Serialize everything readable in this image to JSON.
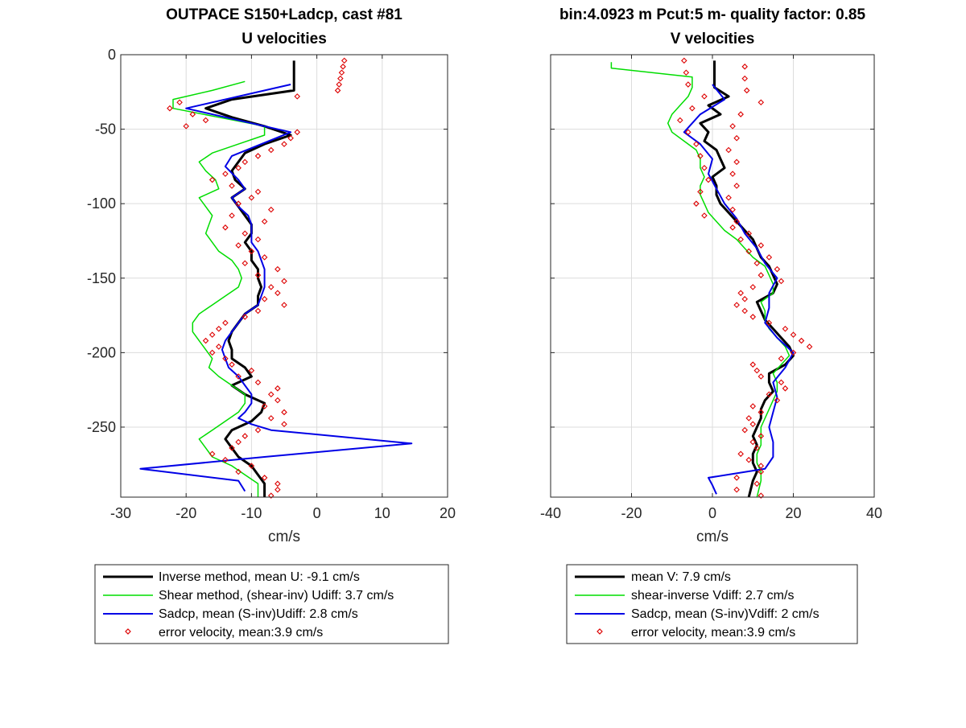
{
  "chart_data": [
    {
      "type": "line",
      "title_line1": "OUTPACE S150+Ladcp, cast #81",
      "title_line2": "U velocities",
      "xlabel": "cm/s",
      "ylabel": "",
      "xlim": [
        -30,
        20
      ],
      "ylim": [
        -297,
        0
      ],
      "xticks": [
        -30,
        -20,
        -10,
        0,
        10,
        20
      ],
      "yticks": [
        0,
        -50,
        -100,
        -150,
        -200,
        -250
      ],
      "grid": true,
      "legend_position": "below",
      "series": [
        {
          "name": "Inverse method, mean U:  -9.1 cm/s",
          "color": "#000000",
          "depth": [
            -4,
            -24,
            -30,
            -36,
            -42,
            -48,
            -54,
            -60,
            -66,
            -72,
            -78,
            -84,
            -90,
            -96,
            -102,
            -108,
            -114,
            -120,
            -126,
            -132,
            -138,
            -144,
            -150,
            -156,
            -162,
            -168,
            -174,
            -180,
            -186,
            -192,
            -198,
            -204,
            -210,
            -216,
            -222,
            -228,
            -234,
            -240,
            -246,
            -252,
            -258,
            -264,
            -270,
            -276,
            -282,
            -288,
            -297
          ],
          "values": [
            -3.5,
            -3.5,
            -13,
            -17,
            -13,
            -8,
            -4,
            -8,
            -11,
            -12,
            -13,
            -12.5,
            -11,
            -13,
            -12,
            -11,
            -10,
            -10,
            -11,
            -10,
            -10,
            -9,
            -9,
            -8.5,
            -9,
            -9,
            -11,
            -12,
            -13,
            -13.5,
            -13,
            -13,
            -11,
            -10,
            -13,
            -11,
            -8,
            -8.5,
            -10,
            -13,
            -14,
            -13,
            -12,
            -10,
            -9,
            -8,
            -8
          ]
        },
        {
          "name": "Shear method, (shear-inv)  Udiff:  3.7 cm/s",
          "color": "#00dd00",
          "depth": [
            -18,
            -24,
            -30,
            -36,
            -42,
            -48,
            -54,
            -60,
            -66,
            -72,
            -78,
            -84,
            -90,
            -96,
            -102,
            -108,
            -114,
            -120,
            -126,
            -132,
            -138,
            -144,
            -150,
            -156,
            -162,
            -168,
            -174,
            -180,
            -186,
            -192,
            -198,
            -204,
            -210,
            -216,
            -222,
            -228,
            -234,
            -240,
            -246,
            -252,
            -258,
            -264,
            -270,
            -276,
            -282,
            -288,
            -297
          ],
          "values": [
            -11,
            -16,
            -22,
            -22,
            -15,
            -8,
            -8,
            -12,
            -16,
            -18,
            -17,
            -15.5,
            -15,
            -18,
            -17,
            -16,
            -16.5,
            -17,
            -16,
            -15,
            -13,
            -12,
            -11.5,
            -12,
            -14,
            -16,
            -18,
            -19,
            -19,
            -18,
            -17,
            -16,
            -16.5,
            -15,
            -13,
            -11,
            -11,
            -12,
            -14,
            -16,
            -18,
            -17,
            -16,
            -13,
            -11,
            -9,
            -9
          ]
        },
        {
          "name": "Sadcp, mean (S-inv)Udiff: 2.8 cm/s",
          "color": "#0000e6",
          "depth": [
            -20,
            -36,
            -52,
            -68,
            -75,
            -84,
            -90,
            -96,
            -102,
            -108,
            -114,
            -120,
            -126,
            -132,
            -138,
            -144,
            -150,
            -156,
            -162,
            -168,
            -174,
            -180,
            -186,
            -192,
            -198,
            -204,
            -210,
            -216,
            -222,
            -228,
            -234,
            -240,
            -244,
            -248,
            -252,
            -261,
            -270,
            -278,
            -286,
            -293
          ],
          "values": [
            -4,
            -20,
            -4,
            -13,
            -14,
            -12,
            -11,
            -13,
            -12,
            -10.5,
            -10,
            -10,
            -10,
            -9,
            -8.5,
            -8,
            -8,
            -8,
            -8.5,
            -9,
            -11,
            -12,
            -13,
            -14,
            -14.5,
            -14,
            -13.5,
            -12,
            -11,
            -10,
            -10,
            -11,
            -12,
            -10,
            -7,
            14.5,
            -8,
            -27,
            -12,
            -11
          ]
        },
        {
          "name": "error velocity, mean:3.9 cm/s",
          "color": "#dd0000",
          "marker": "diamond",
          "depth": [
            -4,
            -8,
            -12,
            -16,
            -20,
            -24,
            -28,
            -32,
            -36,
            -40,
            -44,
            -48,
            -52,
            -56,
            -60,
            -64,
            -68,
            -72,
            -76,
            -80,
            -84,
            -88,
            -92,
            -96,
            -100,
            -104,
            -108,
            -112,
            -116,
            -120,
            -124,
            -128,
            -132,
            -136,
            -140,
            -144,
            -148,
            -152,
            -156,
            -160,
            -164,
            -168,
            -172,
            -176,
            -180,
            -184,
            -188,
            -192,
            -196,
            -200,
            -204,
            -208,
            -212,
            -216,
            -220,
            -224,
            -228,
            -232,
            -236,
            -240,
            -244,
            -248,
            -252,
            -256,
            -260,
            -264,
            -268,
            -272,
            -276,
            -280,
            -284,
            -288,
            -292,
            -296
          ],
          "values": [
            4.2,
            4,
            3.8,
            3.6,
            3.4,
            3.2,
            -3,
            -21,
            -22.5,
            -19,
            -17,
            -20,
            -3,
            -4,
            -5,
            -7,
            -9,
            -11,
            -12,
            -14,
            -16,
            -13,
            -9,
            -10,
            -12,
            -7,
            -13,
            -8,
            -14,
            -11,
            -9,
            -12,
            -10,
            -8,
            -11,
            -6,
            -9,
            -5,
            -7,
            -6,
            -8,
            -5,
            -9,
            -11,
            -14,
            -15,
            -16,
            -17,
            -15,
            -16,
            -14,
            -13,
            -10,
            -12,
            -9,
            -6,
            -7,
            -6,
            -8,
            -5,
            -7,
            -5,
            -9,
            -11,
            -12,
            -13,
            -16,
            -14,
            -10,
            -12,
            -8,
            -6,
            -6,
            -7
          ]
        }
      ]
    },
    {
      "type": "line",
      "title_line1": "bin:4.0923 m  Pcut:5 m- quality factor:  0.85",
      "title_line2": "V velocities",
      "xlabel": "cm/s",
      "ylabel": "",
      "xlim": [
        -40,
        40
      ],
      "ylim": [
        -297,
        0
      ],
      "xticks": [
        -40,
        -20,
        0,
        20,
        40
      ],
      "yticks": [
        0,
        -50,
        -100,
        -150,
        -200,
        -250
      ],
      "grid": true,
      "legend_position": "below",
      "series": [
        {
          "name": "mean V:  7.9 cm/s",
          "color": "#000000",
          "depth": [
            -4,
            -22,
            -28,
            -34,
            -40,
            -46,
            -52,
            -58,
            -64,
            -70,
            -76,
            -82,
            -88,
            -94,
            -100,
            -106,
            -112,
            -118,
            -124,
            -130,
            -136,
            -142,
            -148,
            -154,
            -160,
            -166,
            -172,
            -178,
            -184,
            -190,
            -196,
            -202,
            -208,
            -214,
            -220,
            -226,
            -232,
            -238,
            -244,
            -250,
            -256,
            -262,
            -268,
            -274,
            -280,
            -286,
            -297
          ],
          "values": [
            0.5,
            0.5,
            4,
            -1,
            2,
            -3,
            -1,
            -2,
            1,
            2,
            3,
            0,
            1,
            1,
            2,
            4,
            6,
            8,
            10,
            11,
            12,
            14,
            15,
            16,
            15,
            11,
            12,
            13,
            15,
            17,
            19,
            20,
            18,
            14,
            14,
            15,
            13,
            12,
            12,
            11,
            10,
            11,
            10,
            10,
            11,
            10,
            9
          ]
        },
        {
          "name": "shear-inverse Vdiff:  2.7 cm/s",
          "color": "#00dd00",
          "depth": [
            -5,
            -9,
            -15,
            -22,
            -28,
            -34,
            -40,
            -46,
            -52,
            -58,
            -64,
            -70,
            -76,
            -82,
            -88,
            -94,
            -100,
            -106,
            -112,
            -118,
            -124,
            -130,
            -136,
            -142,
            -148,
            -154,
            -160,
            -166,
            -172,
            -178,
            -184,
            -190,
            -196,
            -202,
            -208,
            -214,
            -220,
            -226,
            -232,
            -238,
            -244,
            -250,
            -256,
            -262,
            -268,
            -274,
            -280,
            -286,
            -297
          ],
          "values": [
            -25,
            -25,
            -5,
            -5,
            -6,
            -8,
            -10,
            -11,
            -10,
            -7,
            -4,
            -3,
            -3,
            -2,
            -3,
            -3,
            -2,
            -1,
            1,
            3,
            6,
            8,
            10,
            13,
            14,
            15,
            15,
            12,
            13,
            13,
            14,
            16,
            18,
            19,
            17,
            15,
            16,
            16,
            15,
            14,
            13,
            12,
            12,
            12,
            11,
            11,
            12,
            12,
            11
          ]
        },
        {
          "name": "Sadcp, mean (S-inv)Vdiff: 2 cm/s",
          "color": "#0000e6",
          "depth": [
            -20,
            -30,
            -40,
            -52,
            -60,
            -70,
            -80,
            -90,
            -100,
            -110,
            -120,
            -130,
            -140,
            -150,
            -160,
            -170,
            -180,
            -190,
            -200,
            -210,
            -220,
            -230,
            -240,
            -250,
            -260,
            -270,
            -278,
            -284,
            -289,
            -295
          ],
          "values": [
            0,
            3,
            -3,
            -7,
            -3,
            0,
            -1,
            1,
            3,
            6,
            8,
            11,
            13,
            16,
            14,
            14,
            13,
            16,
            20,
            18,
            15,
            16,
            15,
            14,
            15,
            15,
            13,
            -1,
            0,
            1
          ]
        },
        {
          "name": "error velocity, mean:3.9 cm/s",
          "color": "#dd0000",
          "marker": "diamond",
          "depth": [
            -4,
            -8,
            -12,
            -16,
            -20,
            -24,
            -28,
            -32,
            -36,
            -40,
            -44,
            -48,
            -52,
            -56,
            -60,
            -64,
            -68,
            -72,
            -76,
            -80,
            -84,
            -88,
            -92,
            -96,
            -100,
            -104,
            -108,
            -112,
            -116,
            -120,
            -124,
            -128,
            -132,
            -136,
            -140,
            -144,
            -148,
            -152,
            -156,
            -160,
            -164,
            -168,
            -172,
            -176,
            -180,
            -184,
            -188,
            -192,
            -196,
            -200,
            -204,
            -208,
            -212,
            -216,
            -220,
            -224,
            -228,
            -232,
            -236,
            -240,
            -244,
            -248,
            -252,
            -256,
            -260,
            -264,
            -268,
            -272,
            -276,
            -280,
            -284,
            -288,
            -292,
            -296
          ],
          "values": [
            -7,
            8,
            -6.5,
            8,
            -6,
            8.5,
            -2,
            12,
            -5,
            7,
            -8,
            5,
            -6,
            6,
            -4,
            4,
            -3,
            6,
            -2,
            5,
            -1,
            6,
            -3,
            4,
            -4,
            5,
            -2,
            6,
            5,
            9,
            7,
            12,
            9,
            14,
            11,
            16,
            12,
            17,
            10,
            7,
            8,
            6,
            8,
            10,
            14,
            18,
            20,
            22,
            24,
            20,
            17,
            10,
            11,
            12,
            17,
            18,
            14,
            16,
            10,
            12,
            9,
            10,
            8,
            12,
            10,
            11,
            7,
            9,
            12,
            12,
            6,
            11,
            6,
            12
          ]
        }
      ]
    }
  ]
}
